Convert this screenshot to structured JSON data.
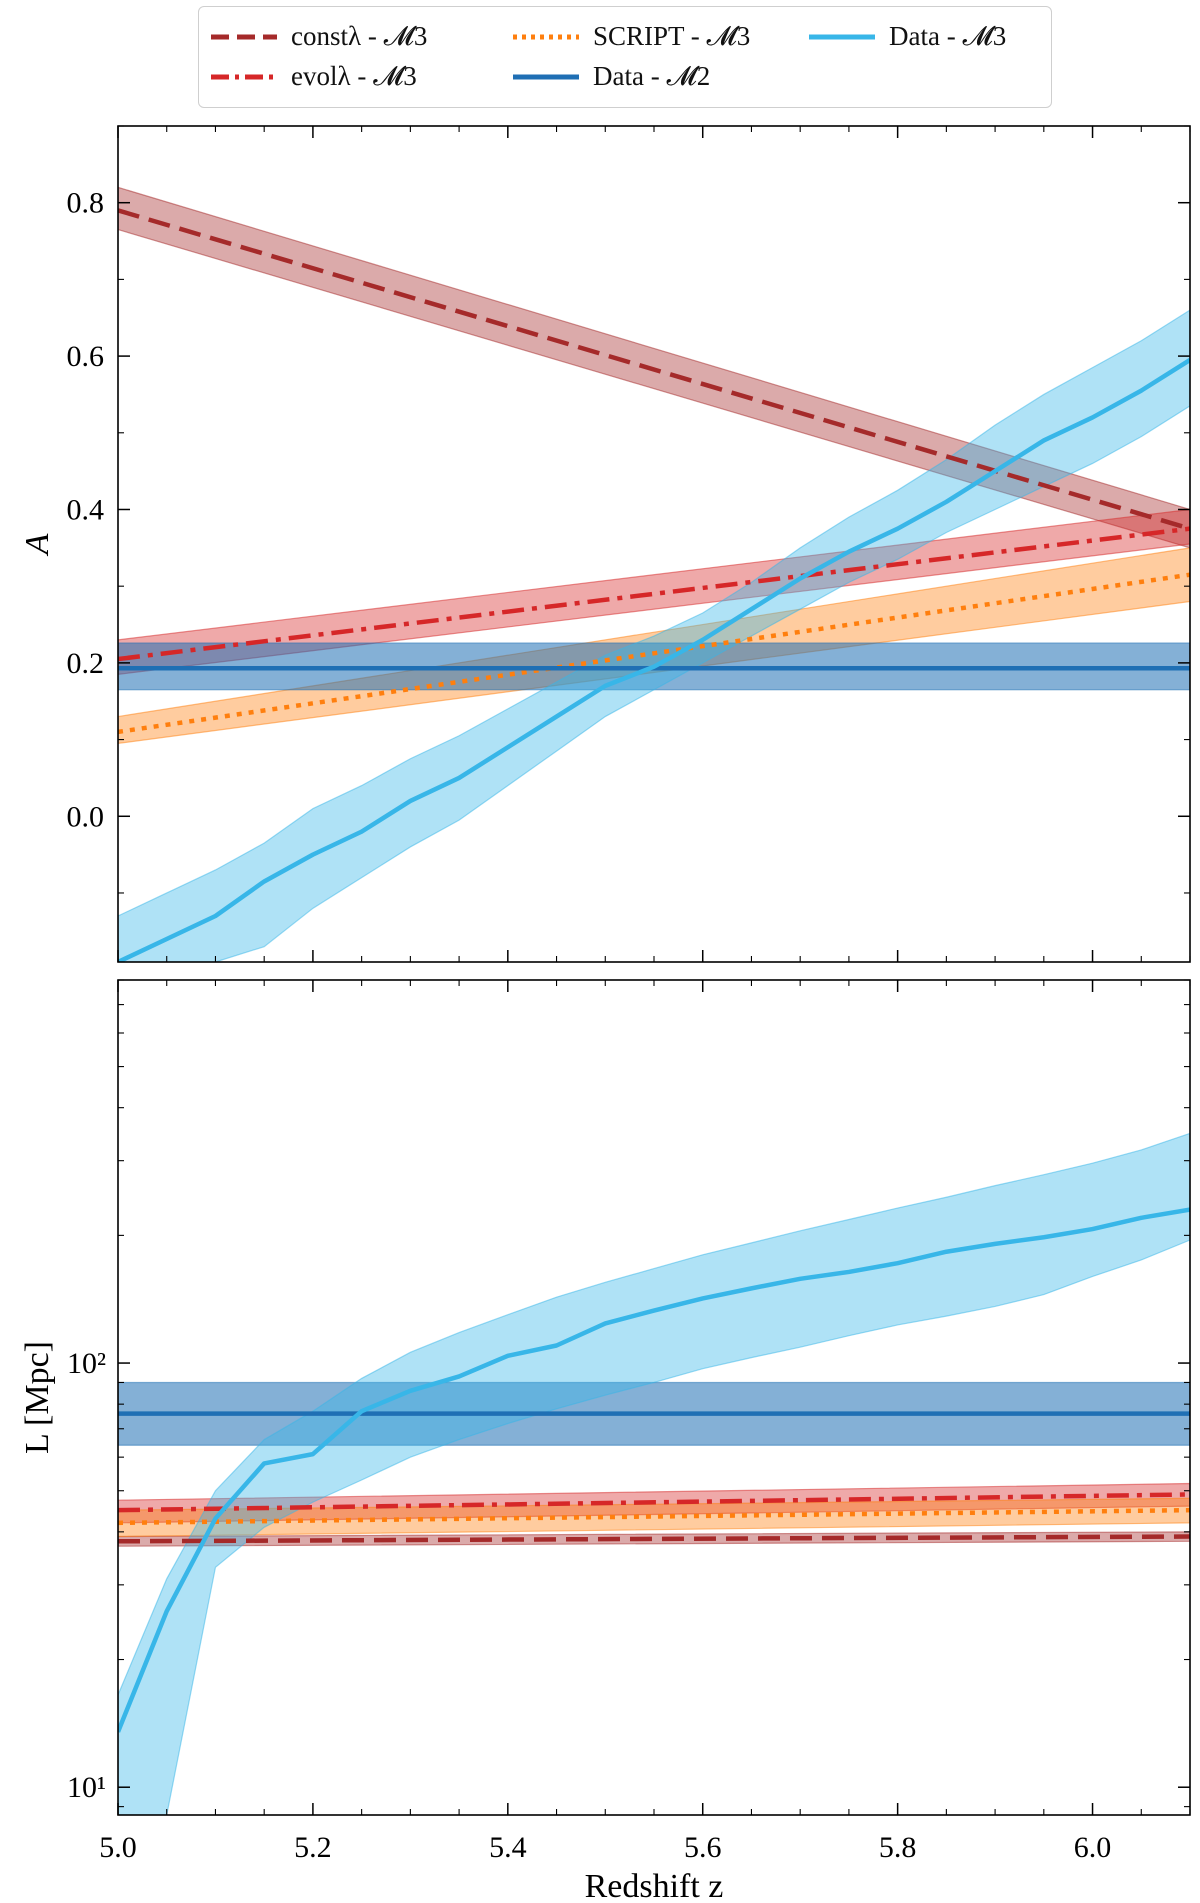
{
  "legend": {
    "placement": "top-center, outside above top panel",
    "entries": [
      {
        "key": "const",
        "label": "constλ - 𝓜3",
        "color": "#a52a2a",
        "style": "dashed"
      },
      {
        "key": "evol",
        "label": "evolλ - 𝓜3",
        "color": "#d62728",
        "style": "dashdot"
      },
      {
        "key": "script",
        "label": "SCRIPT - 𝓜3",
        "color": "#ff7f0e",
        "style": "dotted"
      },
      {
        "key": "m2",
        "label": "Data - 𝓜2",
        "color": "#1f6fb4",
        "style": "solid"
      },
      {
        "key": "m3",
        "label": "Data - 𝓜3",
        "color": "#38b6e8",
        "style": "solid"
      }
    ]
  },
  "chart_data": [
    {
      "type": "line",
      "panel": "top",
      "xlabel": "",
      "ylabel": "A",
      "xlim": [
        5.0,
        6.1
      ],
      "ylim": [
        -0.19,
        0.9
      ],
      "yticks": [
        0.0,
        0.2,
        0.4,
        0.6,
        0.8
      ],
      "ytick_labels": [
        "0.0",
        "0.2",
        "0.4",
        "0.6",
        "0.8"
      ],
      "grid": false,
      "series": [
        {
          "name": "constλ - 𝓜3",
          "key": "const",
          "x": [
            5.0,
            6.1
          ],
          "y": [
            0.79,
            0.375
          ],
          "band_lo": [
            0.765,
            0.35
          ],
          "band_hi": [
            0.82,
            0.4
          ]
        },
        {
          "name": "evolλ - 𝓜3",
          "key": "evol",
          "x": [
            5.0,
            6.1
          ],
          "y": [
            0.205,
            0.375
          ],
          "band_lo": [
            0.185,
            0.355
          ],
          "band_hi": [
            0.23,
            0.4
          ]
        },
        {
          "name": "SCRIPT - 𝓜3",
          "key": "script",
          "x": [
            5.0,
            6.1
          ],
          "y": [
            0.11,
            0.315
          ],
          "band_lo": [
            0.095,
            0.28
          ],
          "band_hi": [
            0.13,
            0.35
          ]
        },
        {
          "name": "Data - 𝓜2",
          "key": "m2",
          "x": [
            5.0,
            6.1
          ],
          "y": [
            0.193,
            0.193
          ],
          "band_lo": [
            0.165,
            0.165
          ],
          "band_hi": [
            0.226,
            0.226
          ]
        },
        {
          "name": "Data - 𝓜3",
          "key": "m3",
          "x": [
            5.0,
            5.05,
            5.1,
            5.15,
            5.2,
            5.25,
            5.3,
            5.35,
            5.4,
            5.45,
            5.5,
            5.55,
            5.6,
            5.65,
            5.7,
            5.75,
            5.8,
            5.85,
            5.9,
            5.95,
            6.0,
            6.05,
            6.1
          ],
          "y": [
            -0.19,
            -0.16,
            -0.13,
            -0.085,
            -0.05,
            -0.02,
            0.02,
            0.05,
            0.09,
            0.13,
            0.17,
            0.195,
            0.23,
            0.27,
            0.31,
            0.345,
            0.375,
            0.41,
            0.45,
            0.49,
            0.52,
            0.555,
            0.595
          ],
          "band_lo": [
            -0.19,
            -0.19,
            -0.19,
            -0.17,
            -0.12,
            -0.08,
            -0.04,
            -0.005,
            0.04,
            0.085,
            0.13,
            0.165,
            0.2,
            0.235,
            0.27,
            0.305,
            0.335,
            0.37,
            0.4,
            0.43,
            0.46,
            0.495,
            0.535
          ],
          "band_hi": [
            -0.13,
            -0.1,
            -0.07,
            -0.035,
            0.01,
            0.04,
            0.075,
            0.105,
            0.14,
            0.175,
            0.21,
            0.235,
            0.265,
            0.305,
            0.35,
            0.39,
            0.425,
            0.465,
            0.51,
            0.55,
            0.585,
            0.62,
            0.66
          ]
        }
      ]
    },
    {
      "type": "line",
      "panel": "bottom",
      "xlabel": "Redshift z",
      "ylabel": "L [Mpc]",
      "xlim": [
        5.0,
        6.1
      ],
      "ylim": [
        8.6,
        800
      ],
      "yscale": "log",
      "yticks": [
        10,
        100
      ],
      "ytick_labels": [
        "10¹",
        "10²"
      ],
      "xticks": [
        5.0,
        5.2,
        5.4,
        5.6,
        5.8,
        6.0
      ],
      "xtick_labels": [
        "5.0",
        "5.2",
        "5.4",
        "5.6",
        "5.8",
        "6.0"
      ],
      "grid": false,
      "series": [
        {
          "name": "constλ - 𝓜3",
          "key": "const",
          "x": [
            5.0,
            6.1
          ],
          "y": [
            38,
            39
          ],
          "band_lo": [
            37,
            38
          ],
          "band_hi": [
            39,
            40
          ]
        },
        {
          "name": "evolλ - 𝓜3",
          "key": "evol",
          "x": [
            5.0,
            6.1
          ],
          "y": [
            45,
            49
          ],
          "band_lo": [
            42,
            46
          ],
          "band_hi": [
            47.5,
            52
          ]
        },
        {
          "name": "SCRIPT - 𝓜3",
          "key": "script",
          "x": [
            5.0,
            6.1
          ],
          "y": [
            42,
            45
          ],
          "band_lo": [
            39,
            42
          ],
          "band_hi": [
            45,
            48
          ]
        },
        {
          "name": "Data - 𝓜2",
          "key": "m2",
          "x": [
            5.0,
            6.1
          ],
          "y": [
            76,
            76
          ],
          "band_lo": [
            64,
            64
          ],
          "band_hi": [
            90,
            90
          ]
        },
        {
          "name": "Data - 𝓜3",
          "key": "m3",
          "x": [
            5.0,
            5.05,
            5.1,
            5.15,
            5.2,
            5.25,
            5.3,
            5.35,
            5.4,
            5.45,
            5.5,
            5.55,
            5.6,
            5.65,
            5.7,
            5.75,
            5.8,
            5.85,
            5.9,
            5.95,
            6.0,
            6.05,
            6.1
          ],
          "y": [
            13.5,
            26,
            43,
            58,
            61,
            77,
            86,
            93,
            104,
            110,
            124,
            133,
            142,
            150,
            158,
            164,
            172,
            183,
            191,
            198,
            207,
            220,
            230
          ],
          "band_lo": [
            8.6,
            8.6,
            33,
            41,
            47,
            53,
            60,
            66,
            72,
            78,
            84,
            90,
            97,
            103,
            109,
            116,
            123,
            129,
            136,
            145,
            160,
            175,
            195
          ],
          "band_hi": [
            16.5,
            31,
            50,
            66,
            77,
            92,
            106,
            118,
            130,
            143,
            155,
            167,
            180,
            192,
            205,
            218,
            232,
            246,
            262,
            278,
            296,
            318,
            348
          ]
        }
      ]
    }
  ]
}
